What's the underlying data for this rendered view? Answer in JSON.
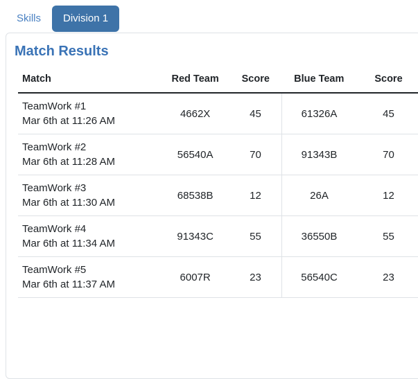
{
  "tabs": {
    "skills": "Skills",
    "division": "Division 1"
  },
  "heading": "Match Results",
  "table": {
    "headers": [
      "Match",
      "Red Team",
      "Score",
      "Blue Team",
      "Score"
    ],
    "rows": [
      {
        "match": "TeamWork #1",
        "time": "Mar 6th at 11:26 AM",
        "red_team": "4662X",
        "red_score": "45",
        "blue_team": "61326A",
        "blue_score": "45"
      },
      {
        "match": "TeamWork #2",
        "time": "Mar 6th at 11:28 AM",
        "red_team": "56540A",
        "red_score": "70",
        "blue_team": "91343B",
        "blue_score": "70"
      },
      {
        "match": "TeamWork #3",
        "time": "Mar 6th at 11:30 AM",
        "red_team": "68538B",
        "red_score": "12",
        "blue_team": "26A",
        "blue_score": "12"
      },
      {
        "match": "TeamWork #4",
        "time": "Mar 6th at 11:34 AM",
        "red_team": "91343C",
        "red_score": "55",
        "blue_team": "36550B",
        "blue_score": "55"
      },
      {
        "match": "TeamWork #5",
        "time": "Mar 6th at 11:37 AM",
        "red_team": "6007R",
        "red_score": "23",
        "blue_team": "56540C",
        "blue_score": "23"
      }
    ]
  },
  "colors": {
    "tab_active_bg": "#3e73a8",
    "link": "#4a81c2",
    "heading": "#3a73b6",
    "header_rule": "#212529",
    "row_divider": "#dee2e6",
    "card_border": "#dee2e6",
    "text": "#212529"
  }
}
